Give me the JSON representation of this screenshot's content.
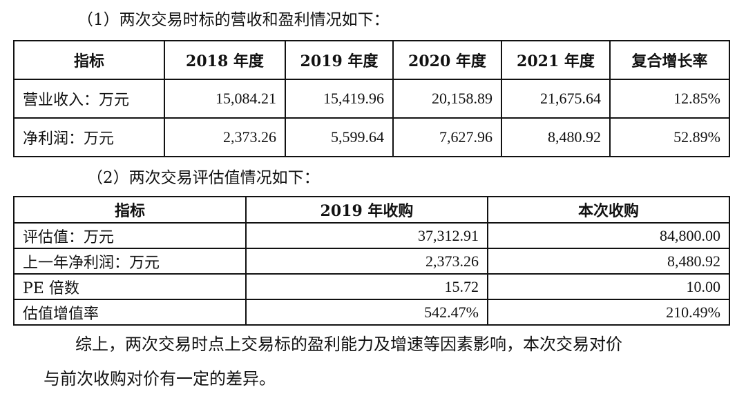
{
  "section1": {
    "heading": "（1）两次交易时标的营收和盈利情况如下：",
    "headers": [
      "指标",
      "2018 年度",
      "2019 年度",
      "2020 年度",
      "2021 年度",
      "复合增长率"
    ],
    "rows": [
      [
        "营业收入：万元",
        "15,084.21",
        "15,419.96",
        "20,158.89",
        "21,675.64",
        "12.85%"
      ],
      [
        "净利润：万元",
        "2,373.26",
        "5,599.64",
        "7,627.96",
        "8,480.92",
        "52.89%"
      ]
    ]
  },
  "section2": {
    "heading": "（2）两次交易评估值情况如下：",
    "headers": [
      "指标",
      "2019 年收购",
      "本次收购"
    ],
    "rows": [
      [
        "评估值：万元",
        "37,312.91",
        "84,800.00"
      ],
      [
        "上一年净利润：万元",
        "2,373.26",
        "8,480.92"
      ],
      [
        "PE 倍数",
        "15.72",
        "10.00"
      ],
      [
        "估值增值率",
        "542.47%",
        "210.49%"
      ]
    ]
  },
  "conclusion": {
    "line1": "综上，两次交易时点上交易标的盈利能力及增速等因素影响，本次交易对价",
    "line2": "与前次收购对价有一定的差异。"
  }
}
